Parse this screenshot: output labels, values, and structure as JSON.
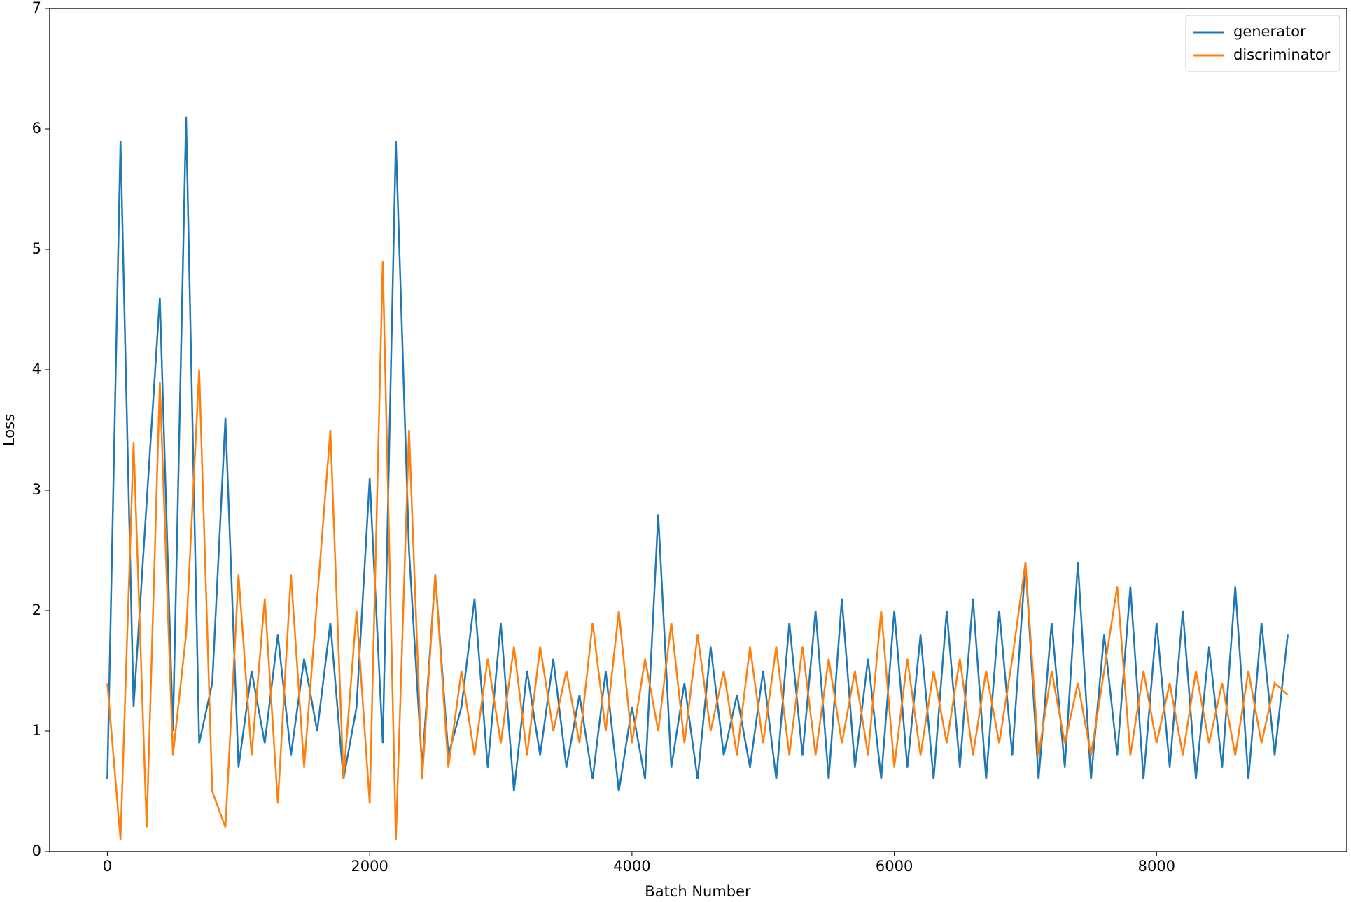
{
  "chart_data": {
    "type": "line",
    "xlabel": "Batch Number",
    "ylabel": "Loss",
    "x": [
      0,
      100,
      200,
      300,
      400,
      500,
      600,
      700,
      800,
      900,
      1000,
      1100,
      1200,
      1300,
      1400,
      1500,
      1600,
      1700,
      1800,
      1900,
      2000,
      2100,
      2200,
      2300,
      2400,
      2500,
      2600,
      2700,
      2800,
      2900,
      3000,
      3100,
      3200,
      3300,
      3400,
      3500,
      3600,
      3700,
      3800,
      3900,
      4000,
      4100,
      4200,
      4300,
      4400,
      4500,
      4600,
      4700,
      4800,
      4900,
      5000,
      5100,
      5200,
      5300,
      5400,
      5500,
      5600,
      5700,
      5800,
      5900,
      6000,
      6100,
      6200,
      6300,
      6400,
      6500,
      6600,
      6700,
      6800,
      6900,
      7000,
      7100,
      7200,
      7300,
      7400,
      7500,
      7600,
      7700,
      7800,
      7900,
      8000,
      8100,
      8200,
      8300,
      8400,
      8500,
      8600,
      8700,
      8800,
      8900,
      9000
    ],
    "series": [
      {
        "name": "generator",
        "color": "#1f77b4",
        "values": [
          0.6,
          5.9,
          1.2,
          2.9,
          4.6,
          1.0,
          6.1,
          0.9,
          1.4,
          3.6,
          0.7,
          1.5,
          0.9,
          1.8,
          0.8,
          1.6,
          1.0,
          1.9,
          0.6,
          1.2,
          3.1,
          0.9,
          5.9,
          2.5,
          0.7,
          2.3,
          0.8,
          1.2,
          2.1,
          0.7,
          1.9,
          0.5,
          1.5,
          0.8,
          1.6,
          0.7,
          1.3,
          0.6,
          1.5,
          0.5,
          1.2,
          0.6,
          2.8,
          0.7,
          1.4,
          0.6,
          1.7,
          0.8,
          1.3,
          0.7,
          1.5,
          0.6,
          1.9,
          0.8,
          2.0,
          0.6,
          2.1,
          0.7,
          1.6,
          0.6,
          2.0,
          0.7,
          1.8,
          0.6,
          2.0,
          0.7,
          2.1,
          0.6,
          2.0,
          0.8,
          2.4,
          0.6,
          1.9,
          0.7,
          2.4,
          0.6,
          1.8,
          0.8,
          2.2,
          0.6,
          1.9,
          0.7,
          2.0,
          0.6,
          1.7,
          0.7,
          2.2,
          0.6,
          1.9,
          0.8,
          1.8
        ]
      },
      {
        "name": "discriminator",
        "color": "#ff7f0e",
        "values": [
          1.4,
          0.1,
          3.4,
          0.2,
          3.9,
          0.8,
          1.8,
          4.0,
          0.5,
          0.2,
          2.3,
          0.8,
          2.1,
          0.4,
          2.3,
          0.7,
          2.1,
          3.5,
          0.6,
          2.0,
          0.4,
          4.9,
          0.1,
          3.5,
          0.6,
          2.3,
          0.7,
          1.5,
          0.8,
          1.6,
          0.9,
          1.7,
          0.8,
          1.7,
          1.0,
          1.5,
          0.9,
          1.9,
          1.0,
          2.0,
          0.9,
          1.6,
          1.0,
          1.9,
          0.9,
          1.8,
          1.0,
          1.5,
          0.8,
          1.7,
          0.9,
          1.7,
          0.8,
          1.7,
          0.8,
          1.6,
          0.9,
          1.5,
          0.8,
          2.0,
          0.7,
          1.6,
          0.8,
          1.5,
          0.9,
          1.6,
          0.8,
          1.5,
          0.9,
          1.6,
          2.4,
          0.8,
          1.5,
          0.9,
          1.4,
          0.8,
          1.5,
          2.2,
          0.8,
          1.5,
          0.9,
          1.4,
          0.8,
          1.5,
          0.9,
          1.4,
          0.8,
          1.5,
          0.9,
          1.4,
          1.3
        ]
      }
    ],
    "xlim": [
      -440,
      9450
    ],
    "xticks": [
      0,
      2000,
      4000,
      6000,
      8000
    ],
    "ylim": [
      0,
      7
    ],
    "yticks": [
      0,
      1,
      2,
      3,
      4,
      5,
      6,
      7
    ],
    "legend": "upper right"
  }
}
